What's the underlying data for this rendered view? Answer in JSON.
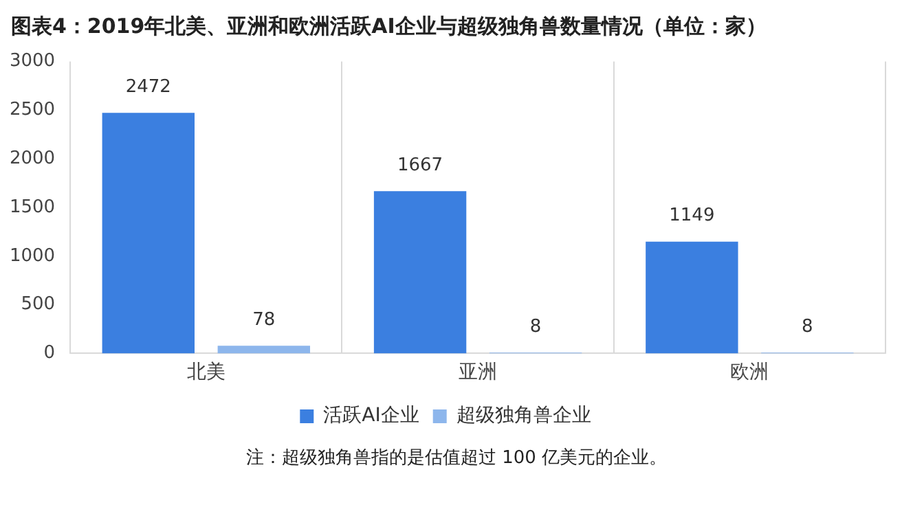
{
  "chart_data": {
    "type": "bar",
    "title": "图表4：2019年北美、亚洲和欧洲活跃AI企业与超级独角兽数量情况（单位：家）",
    "categories": [
      "北美",
      "亚洲",
      "欧洲"
    ],
    "series": [
      {
        "name": "活跃AI企业",
        "color": "#3b7fe0",
        "values": [
          2472,
          1667,
          1149
        ]
      },
      {
        "name": "超级独角兽企业",
        "color": "#8db6ec",
        "values": [
          78,
          8,
          8
        ]
      }
    ],
    "ylim": [
      0,
      3000
    ],
    "yticks": [
      0,
      500,
      1000,
      1500,
      2000,
      2500,
      3000
    ],
    "grid": "x",
    "legend": "bottom",
    "data_labels": true,
    "annotations": [
      "注：超级独角兽指的是估值超过 100 亿美元的企业。"
    ]
  }
}
